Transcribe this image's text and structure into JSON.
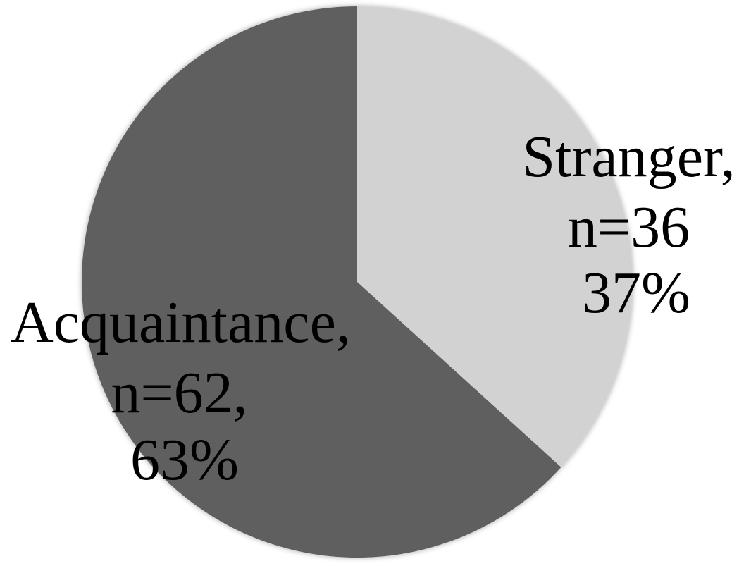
{
  "chart_data": {
    "type": "pie",
    "title": "",
    "slices": [
      {
        "name": "Stranger",
        "value": 36,
        "percent": 37,
        "color": "#d2d2d2",
        "label_lines": [
          "Stranger,",
          "n=36",
          "37%"
        ]
      },
      {
        "name": "Acquaintance",
        "value": 62,
        "percent": 63,
        "color": "#5e5e5e",
        "label_lines": [
          "Acquaintance,",
          "n=62,",
          "63%"
        ]
      }
    ],
    "start_angle": "12 o'clock",
    "direction": "clockwise",
    "legend": "none"
  }
}
